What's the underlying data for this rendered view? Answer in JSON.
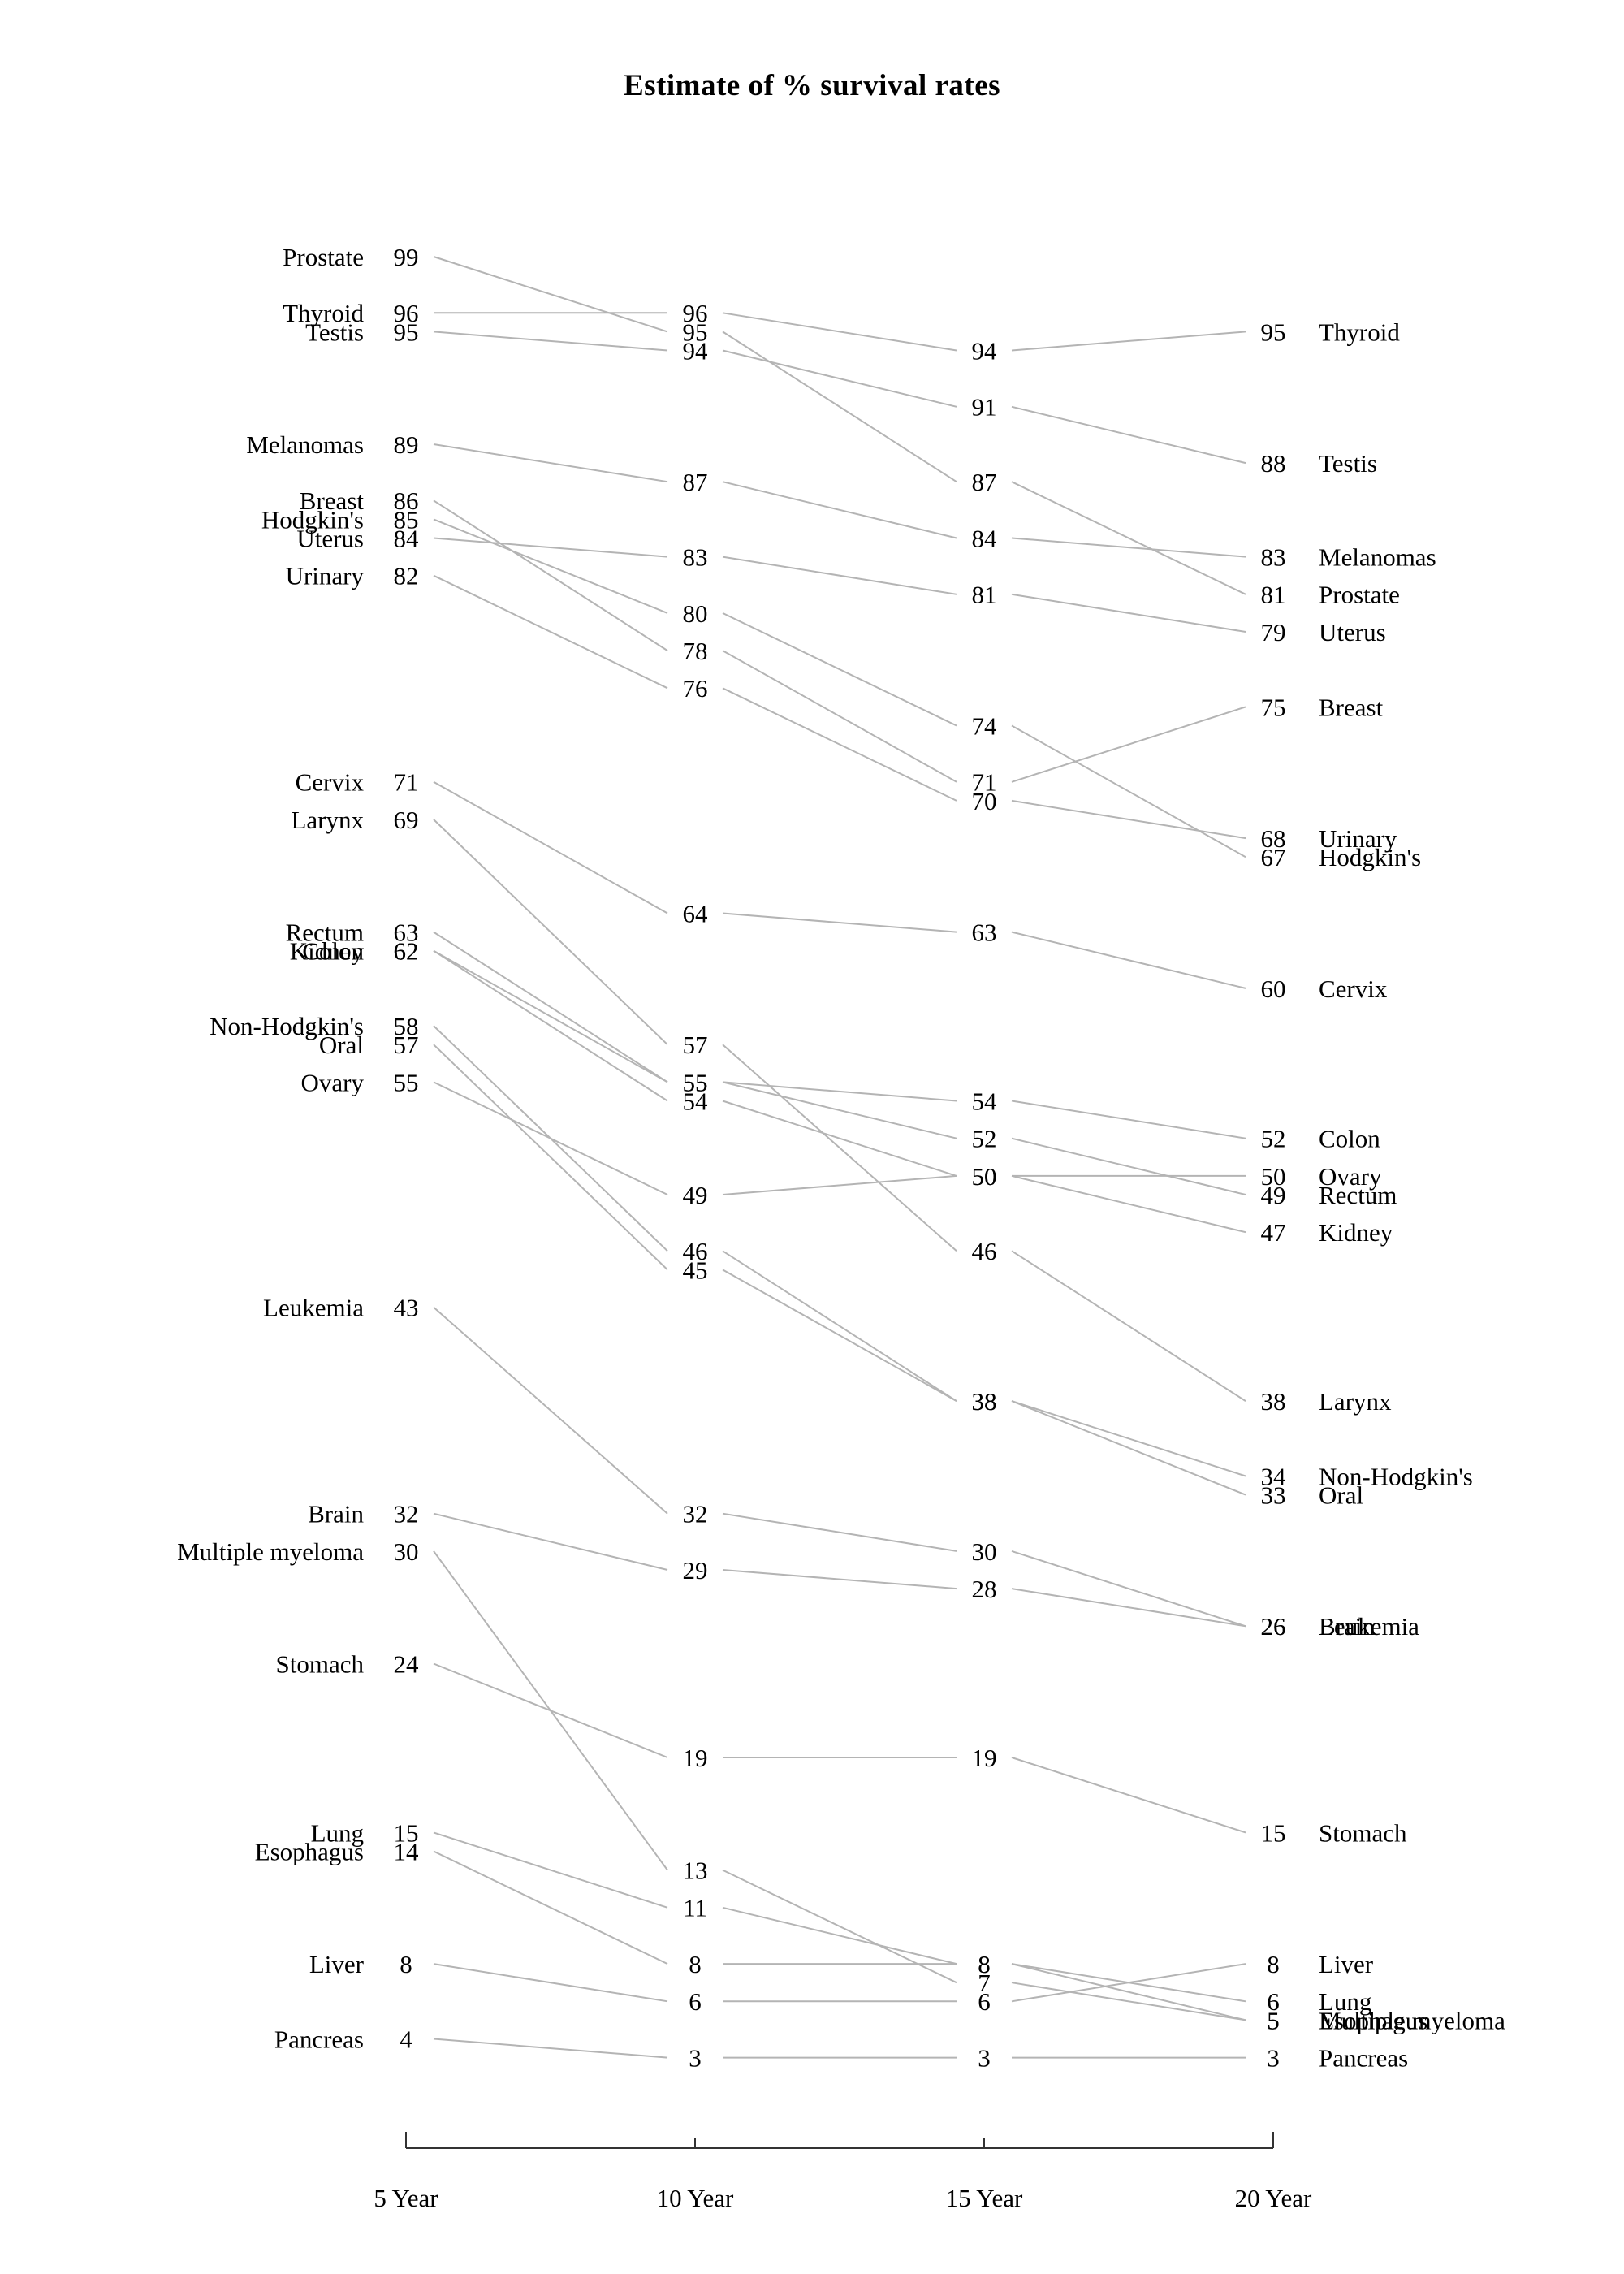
{
  "page": {
    "background": "#ffffff"
  },
  "chart_data": {
    "type": "line",
    "variant": "slopegraph",
    "title": "Estimate of % survival rates",
    "x_categories": [
      "5 Year",
      "10 Year",
      "15 Year",
      "20 Year"
    ],
    "ylim": [
      0,
      100
    ],
    "grid": false,
    "legend_position": "none (series named at line endpoints: left labels at 5-year value, right labels at 20-year value)",
    "line_color": "#b4b4b4",
    "axis_color": "#333333",
    "text_color": "#000000",
    "series": [
      {
        "name": "Prostate",
        "values": [
          99,
          95,
          87,
          81
        ]
      },
      {
        "name": "Thyroid",
        "values": [
          96,
          96,
          94,
          95
        ]
      },
      {
        "name": "Testis",
        "values": [
          95,
          94,
          91,
          88
        ]
      },
      {
        "name": "Melanomas",
        "values": [
          89,
          87,
          84,
          83
        ]
      },
      {
        "name": "Breast",
        "values": [
          86,
          78,
          71,
          75
        ]
      },
      {
        "name": "Hodgkin's",
        "values": [
          85,
          80,
          74,
          67
        ]
      },
      {
        "name": "Uterus",
        "values": [
          84,
          83,
          81,
          79
        ]
      },
      {
        "name": "Urinary",
        "values": [
          82,
          76,
          70,
          68
        ]
      },
      {
        "name": "Cervix",
        "values": [
          71,
          64,
          63,
          60
        ]
      },
      {
        "name": "Larynx",
        "values": [
          69,
          57,
          46,
          38
        ]
      },
      {
        "name": "Rectum",
        "values": [
          63,
          55,
          52,
          49
        ]
      },
      {
        "name": "Kidney",
        "values": [
          62,
          54,
          50,
          47
        ]
      },
      {
        "name": "Colon",
        "values": [
          62,
          55,
          54,
          52
        ]
      },
      {
        "name": "Non-Hodgkin's",
        "values": [
          58,
          46,
          38,
          34
        ]
      },
      {
        "name": "Oral",
        "values": [
          57,
          45,
          38,
          33
        ]
      },
      {
        "name": "Ovary",
        "values": [
          55,
          49,
          50,
          50
        ]
      },
      {
        "name": "Leukemia",
        "values": [
          43,
          32,
          30,
          26
        ]
      },
      {
        "name": "Brain",
        "values": [
          32,
          29,
          28,
          26
        ]
      },
      {
        "name": "Multiple myeloma",
        "values": [
          30,
          13,
          7,
          5
        ]
      },
      {
        "name": "Stomach",
        "values": [
          24,
          19,
          19,
          15
        ]
      },
      {
        "name": "Lung",
        "values": [
          15,
          11,
          8,
          6
        ]
      },
      {
        "name": "Esophagus",
        "values": [
          14,
          8,
          8,
          5
        ]
      },
      {
        "name": "Liver",
        "values": [
          8,
          6,
          6,
          8
        ]
      },
      {
        "name": "Pancreas",
        "values": [
          4,
          3,
          3,
          3
        ]
      }
    ]
  }
}
